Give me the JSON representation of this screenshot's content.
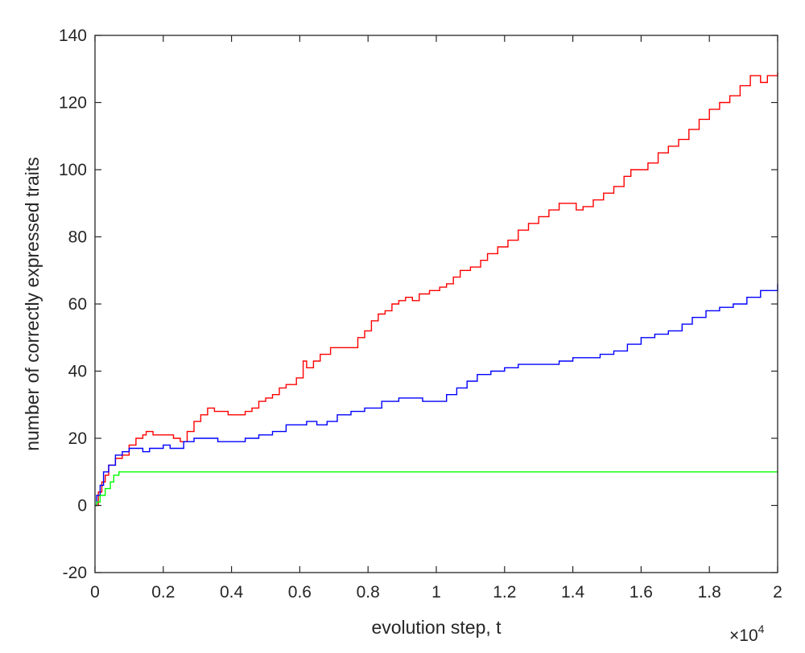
{
  "chart_data": {
    "type": "line",
    "title": "",
    "xlabel": "evolution step, t",
    "ylabel": "number of correctly expressed traits",
    "x_exponent_label": {
      "base": "×10",
      "power": "4"
    },
    "xlim": [
      0,
      20000
    ],
    "ylim": [
      -20,
      140
    ],
    "xticks": [
      0,
      2000,
      4000,
      6000,
      8000,
      10000,
      12000,
      14000,
      16000,
      18000,
      20000
    ],
    "xtick_labels": [
      "0",
      "0.2",
      "0.4",
      "0.6",
      "0.8",
      "1",
      "1.2",
      "1.4",
      "1.6",
      "1.8",
      "2"
    ],
    "yticks": [
      -20,
      0,
      20,
      40,
      60,
      80,
      100,
      120,
      140
    ],
    "ytick_labels": [
      "-20",
      "0",
      "20",
      "40",
      "60",
      "80",
      "100",
      "120",
      "140"
    ],
    "grid": false,
    "line_style": "step",
    "series": [
      {
        "color": "#ff0000",
        "points": [
          [
            0,
            0
          ],
          [
            100,
            4
          ],
          [
            200,
            7
          ],
          [
            300,
            9
          ],
          [
            400,
            12
          ],
          [
            600,
            14
          ],
          [
            800,
            15
          ],
          [
            1000,
            18
          ],
          [
            1200,
            20
          ],
          [
            1400,
            21
          ],
          [
            1500,
            22
          ],
          [
            1700,
            21
          ],
          [
            2000,
            21
          ],
          [
            2300,
            20
          ],
          [
            2500,
            19
          ],
          [
            2700,
            22
          ],
          [
            2900,
            25
          ],
          [
            3100,
            27
          ],
          [
            3300,
            29
          ],
          [
            3500,
            28
          ],
          [
            3700,
            28
          ],
          [
            3900,
            27
          ],
          [
            4200,
            27
          ],
          [
            4400,
            28
          ],
          [
            4600,
            29
          ],
          [
            4800,
            31
          ],
          [
            5000,
            32
          ],
          [
            5200,
            33
          ],
          [
            5400,
            35
          ],
          [
            5600,
            36
          ],
          [
            5900,
            38
          ],
          [
            6100,
            43
          ],
          [
            6200,
            41
          ],
          [
            6400,
            43
          ],
          [
            6600,
            45
          ],
          [
            6900,
            47
          ],
          [
            7100,
            47
          ],
          [
            7300,
            47
          ],
          [
            7500,
            47
          ],
          [
            7700,
            50
          ],
          [
            7900,
            52
          ],
          [
            8100,
            55
          ],
          [
            8300,
            57
          ],
          [
            8500,
            58
          ],
          [
            8700,
            60
          ],
          [
            8900,
            61
          ],
          [
            9100,
            62
          ],
          [
            9300,
            61
          ],
          [
            9500,
            63
          ],
          [
            9800,
            64
          ],
          [
            10100,
            65
          ],
          [
            10300,
            66
          ],
          [
            10500,
            68
          ],
          [
            10700,
            70
          ],
          [
            11000,
            71
          ],
          [
            11300,
            73
          ],
          [
            11500,
            75
          ],
          [
            11800,
            77
          ],
          [
            12100,
            79
          ],
          [
            12400,
            82
          ],
          [
            12700,
            84
          ],
          [
            13000,
            86
          ],
          [
            13300,
            88
          ],
          [
            13600,
            90
          ],
          [
            13900,
            90
          ],
          [
            14100,
            88
          ],
          [
            14300,
            89
          ],
          [
            14600,
            91
          ],
          [
            14900,
            93
          ],
          [
            15200,
            95
          ],
          [
            15500,
            98
          ],
          [
            15700,
            100
          ],
          [
            16000,
            100
          ],
          [
            16200,
            102
          ],
          [
            16500,
            105
          ],
          [
            16800,
            107
          ],
          [
            17100,
            109
          ],
          [
            17400,
            112
          ],
          [
            17700,
            115
          ],
          [
            18000,
            118
          ],
          [
            18300,
            120
          ],
          [
            18600,
            122
          ],
          [
            18900,
            125
          ],
          [
            19200,
            128
          ],
          [
            19500,
            126
          ],
          [
            19700,
            128
          ],
          [
            20000,
            129
          ]
        ]
      },
      {
        "color": "#0000ff",
        "points": [
          [
            0,
            0
          ],
          [
            50,
            3
          ],
          [
            150,
            6
          ],
          [
            250,
            10
          ],
          [
            400,
            12
          ],
          [
            600,
            15
          ],
          [
            800,
            16
          ],
          [
            1000,
            17
          ],
          [
            1200,
            17
          ],
          [
            1400,
            16
          ],
          [
            1600,
            17
          ],
          [
            1800,
            17
          ],
          [
            2000,
            18
          ],
          [
            2200,
            17
          ],
          [
            2400,
            17
          ],
          [
            2600,
            19
          ],
          [
            2900,
            20
          ],
          [
            3200,
            20
          ],
          [
            3600,
            19
          ],
          [
            4000,
            19
          ],
          [
            4400,
            20
          ],
          [
            4800,
            21
          ],
          [
            5200,
            22
          ],
          [
            5600,
            24
          ],
          [
            6000,
            24
          ],
          [
            6200,
            25
          ],
          [
            6500,
            24
          ],
          [
            6800,
            25
          ],
          [
            7100,
            27
          ],
          [
            7500,
            28
          ],
          [
            7900,
            29
          ],
          [
            8400,
            31
          ],
          [
            8900,
            32
          ],
          [
            9300,
            32
          ],
          [
            9600,
            31
          ],
          [
            9900,
            31
          ],
          [
            10300,
            33
          ],
          [
            10600,
            35
          ],
          [
            10900,
            37
          ],
          [
            11200,
            39
          ],
          [
            11600,
            40
          ],
          [
            12000,
            41
          ],
          [
            12400,
            42
          ],
          [
            12800,
            42
          ],
          [
            13200,
            42
          ],
          [
            13600,
            43
          ],
          [
            14000,
            44
          ],
          [
            14400,
            44
          ],
          [
            14800,
            45
          ],
          [
            15200,
            46
          ],
          [
            15600,
            48
          ],
          [
            16000,
            50
          ],
          [
            16400,
            51
          ],
          [
            16800,
            52
          ],
          [
            17200,
            54
          ],
          [
            17500,
            56
          ],
          [
            17900,
            58
          ],
          [
            18300,
            59
          ],
          [
            18700,
            60
          ],
          [
            19100,
            62
          ],
          [
            19500,
            64
          ],
          [
            20000,
            66
          ]
        ]
      },
      {
        "color": "#00ff00",
        "points": [
          [
            0,
            0
          ],
          [
            50,
            1
          ],
          [
            150,
            3
          ],
          [
            300,
            5
          ],
          [
            450,
            7
          ],
          [
            550,
            9
          ],
          [
            700,
            10
          ],
          [
            800,
            10
          ],
          [
            20000,
            10
          ]
        ]
      }
    ]
  }
}
